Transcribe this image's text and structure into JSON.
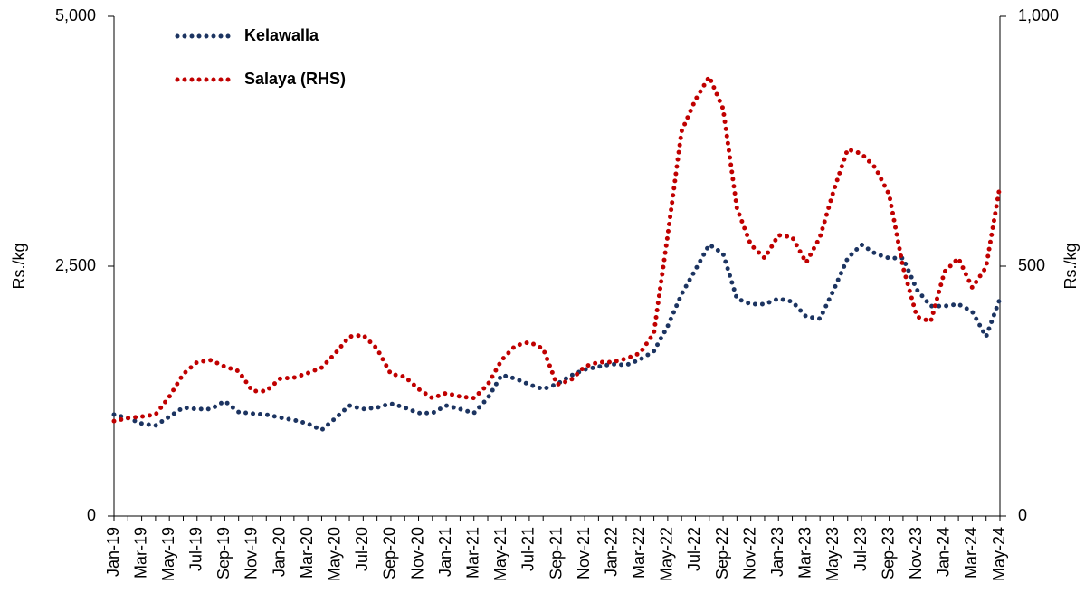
{
  "chart_data": {
    "type": "line",
    "categories": [
      "Jan-19",
      null,
      "Mar-19",
      null,
      "May-19",
      null,
      "Jul-19",
      null,
      "Sep-19",
      null,
      "Nov-19",
      null,
      "Jan-20",
      null,
      "Mar-20",
      null,
      "May-20",
      null,
      "Jul-20",
      null,
      "Sep-20",
      null,
      "Nov-20",
      null,
      "Jan-21",
      null,
      "Mar-21",
      null,
      "May-21",
      null,
      "Jul-21",
      null,
      "Sep-21",
      null,
      "Nov-21",
      null,
      "Jan-22",
      null,
      "Mar-22",
      null,
      "May-22",
      null,
      "Jul-22",
      null,
      "Sep-22",
      null,
      "Nov-22",
      null,
      "Jan-23",
      null,
      "Mar-23",
      null,
      "May-23",
      null,
      "Jul-23",
      null,
      "Sep-23",
      null,
      "Nov-23",
      null,
      "Jan-24",
      null,
      "Mar-24",
      null,
      "May-24"
    ],
    "series": [
      {
        "name": "Kelawalla",
        "color": "#1c3461",
        "axis": "y",
        "values": [
          1015,
          980,
          925,
          905,
          995,
          1085,
          1070,
          1070,
          1150,
          1040,
          1025,
          1015,
          985,
          960,
          925,
          860,
          980,
          1105,
          1070,
          1085,
          1125,
          1085,
          1030,
          1030,
          1105,
          1070,
          1030,
          1180,
          1410,
          1375,
          1315,
          1270,
          1320,
          1405,
          1465,
          1495,
          1520,
          1510,
          1565,
          1650,
          1900,
          2220,
          2465,
          2715,
          2625,
          2175,
          2120,
          2120,
          2175,
          2145,
          1995,
          1975,
          2265,
          2580,
          2715,
          2625,
          2580,
          2580,
          2265,
          2100,
          2100,
          2120,
          2045,
          1795,
          2175
        ]
      },
      {
        "name": "Salaya (RHS)",
        "color": "#c00000",
        "axis": "y2",
        "values": [
          190,
          196,
          199,
          203,
          239,
          284,
          308,
          312,
          299,
          290,
          250,
          250,
          275,
          277,
          286,
          297,
          326,
          359,
          362,
          335,
          284,
          279,
          254,
          236,
          246,
          239,
          236,
          263,
          312,
          341,
          348,
          335,
          263,
          272,
          299,
          308,
          308,
          315,
          326,
          366,
          562,
          770,
          833,
          879,
          815,
          616,
          543,
          516,
          562,
          558,
          507,
          558,
          652,
          734,
          725,
          697,
          643,
          498,
          399,
          389,
          489,
          516,
          457,
          498,
          661
        ]
      }
    ],
    "ylabel": "Rs./kg",
    "y2label": "Rs./kg",
    "ylim": [
      0,
      5000
    ],
    "yticks": [
      0,
      {
        "value": 2500,
        "label": "2,500"
      },
      {
        "value": 5000,
        "label": "5,000"
      }
    ],
    "y2lim": [
      0,
      1000
    ],
    "y2ticks": [
      0,
      500,
      {
        "value": 1000,
        "label": "1,000"
      }
    ],
    "grid": false,
    "legend": "top-left"
  }
}
